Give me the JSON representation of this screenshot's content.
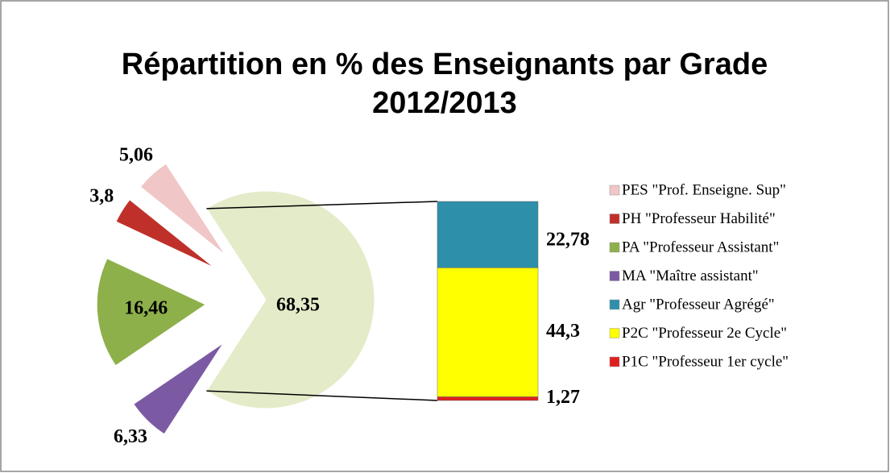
{
  "chart_data": {
    "type": "bar-of-pie",
    "title": [
      "Répartition en % des Enseignants par Grade",
      "2012/2013"
    ],
    "pie": {
      "categories": [
        "PES \"Prof. Enseigne. Sup\"",
        "PH \"Professeur Habilité\"",
        "PA \"Professeur Assistant\"",
        "MA \"Maître assistant\""
      ],
      "values": [
        5.06,
        3.8,
        16.46,
        6.33
      ],
      "value_labels": [
        "5,06",
        "3,8",
        "16,46",
        "6,33"
      ],
      "colors": [
        "#f0c6c6",
        "#c0302a",
        "#8db04a",
        "#7b5aa3"
      ]
    },
    "pie_other": {
      "value": 68.35,
      "value_label": "68,35",
      "color": "#e4ebc9"
    },
    "bar": {
      "categories": [
        "Agr \"Professeur Agrégé\"",
        "P2C \"Professeur 2e Cycle\"",
        "P1C \"Professeur 1er cycle\""
      ],
      "values": [
        22.78,
        44.3,
        1.27
      ],
      "value_labels": [
        "22,78",
        "44,3",
        "1,27"
      ],
      "colors": [
        "#2e8fab",
        "#ffff00",
        "#e02020"
      ]
    }
  }
}
